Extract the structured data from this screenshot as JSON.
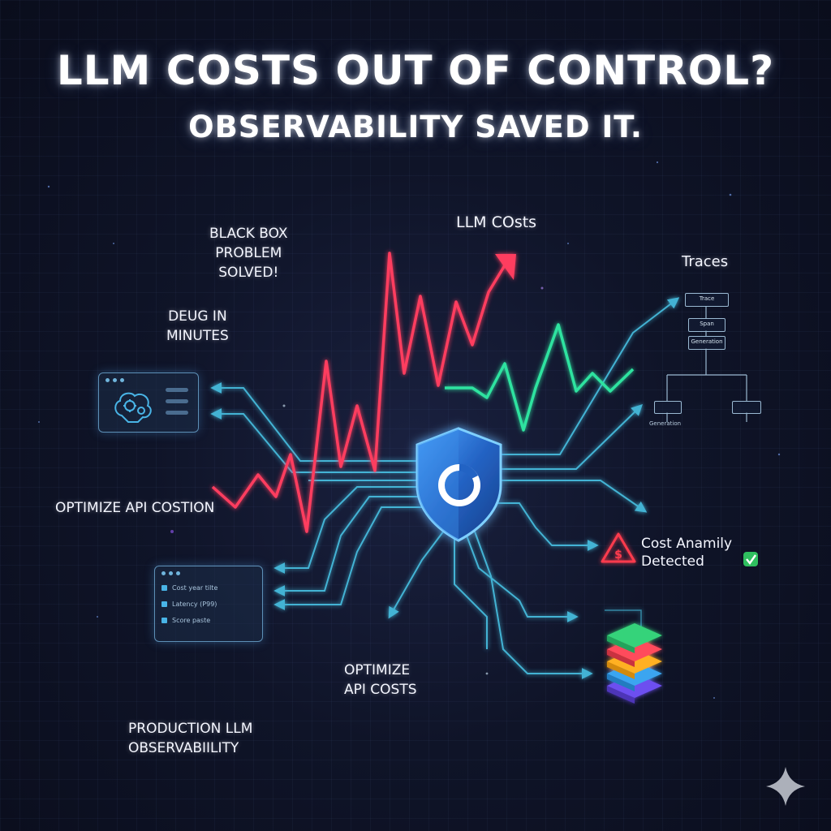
{
  "title": "LLM COSTS OUT OF CONTROL?",
  "subtitle": "OBSERVABILITY SAVED IT.",
  "labels": {
    "black_box": [
      "BLACK BOX",
      "PROBLEM",
      "SOLVED!"
    ],
    "llm_costs": "LLM COsts",
    "traces": "Traces",
    "debug": [
      "DEUG IN",
      "MINUTES"
    ],
    "optimize_left": "OPTIMIZE API COSTION",
    "cost_anomaly": [
      "Cost Anamily",
      "Detected"
    ],
    "optimize_center": [
      "OPTIMIZE",
      "API COSTS"
    ],
    "production": [
      "PRODUCTION LLM",
      "OBSERVABIILITY"
    ]
  },
  "trace_tree": {
    "nodes": [
      "Trace",
      "Span",
      "Generation"
    ],
    "footer": "Generation"
  },
  "dashboard_window": {
    "rows": [
      "Cost year tilte",
      "Latency (P99)",
      "Score paste"
    ]
  },
  "colors": {
    "cost_line": "#ff3d5e",
    "healthy_line": "#2fe3a0",
    "connector": "#48c4e6",
    "shield": "#2f7fd6",
    "alert": "#ff3b4e",
    "check": "#2fbf5f"
  },
  "icons": {
    "shield": "shield-logo-icon",
    "warning": "warning-dollar-icon",
    "check": "check-badge-icon",
    "stack": "layered-stack-icon",
    "brain": "brain-gear-icon",
    "sparkle": "sparkle-icon"
  }
}
